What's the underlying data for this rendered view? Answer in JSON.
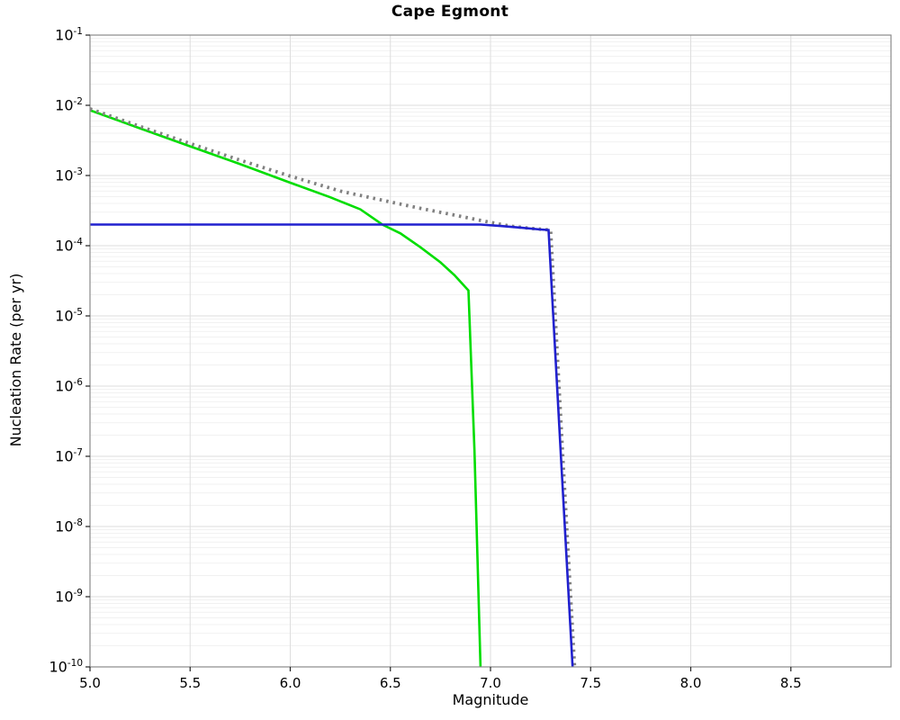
{
  "chart_data": {
    "type": "line",
    "title": "Cape Egmont",
    "xlabel": "Magnitude",
    "ylabel": "Nucleation Rate (per yr)",
    "x_ticks": [
      5.0,
      5.5,
      6.0,
      6.5,
      7.0,
      7.5,
      8.0,
      8.5
    ],
    "xlim": [
      5.0,
      9.0
    ],
    "y_scale": "log",
    "y_tick_exponents": [
      -1,
      -2,
      -3,
      -4,
      -5,
      -6,
      -7,
      -8,
      -9,
      -10
    ],
    "ylim": [
      1e-10,
      0.1
    ],
    "grid": true,
    "legend": "none",
    "colors": {
      "green_solid": "#00dd00",
      "gray_dotted": "#808080",
      "blue_solid": "#2121cf"
    },
    "series": [
      {
        "name": "green-solid-line",
        "color": "#00dd00",
        "style": "solid",
        "width": 2.6,
        "points": [
          [
            5.0,
            0.0085
          ],
          [
            5.25,
            0.0047
          ],
          [
            5.5,
            0.0026
          ],
          [
            5.75,
            0.00145
          ],
          [
            6.0,
            0.00079
          ],
          [
            6.2,
            0.00049
          ],
          [
            6.35,
            0.00033
          ],
          [
            6.46,
            0.0002
          ],
          [
            6.55,
            0.00015
          ],
          [
            6.65,
            9.5e-05
          ],
          [
            6.75,
            5.8e-05
          ],
          [
            6.82,
            3.8e-05
          ],
          [
            6.89,
            2.3e-05
          ],
          [
            6.92,
            1.2e-07
          ],
          [
            6.95,
            1e-10
          ]
        ]
      },
      {
        "name": "gray-dotted-line",
        "color": "#808080",
        "style": "dotted",
        "width": 3.8,
        "points": [
          [
            5.0,
            0.0089
          ],
          [
            5.25,
            0.005
          ],
          [
            5.5,
            0.00285
          ],
          [
            5.75,
            0.00165
          ],
          [
            6.0,
            0.00098
          ],
          [
            6.25,
            0.0006
          ],
          [
            6.5,
            0.00042
          ],
          [
            6.65,
            0.00034
          ],
          [
            6.8,
            0.00028
          ],
          [
            6.9,
            0.000245
          ],
          [
            7.0,
            0.000215
          ],
          [
            7.1,
            0.00019
          ],
          [
            7.2,
            0.000177
          ],
          [
            7.3,
            0.000167
          ],
          [
            7.36,
            1.1e-07
          ],
          [
            7.42,
            1e-10
          ]
        ]
      },
      {
        "name": "blue-solid-line",
        "color": "#2121cf",
        "style": "solid",
        "width": 2.6,
        "points": [
          [
            5.0,
            0.0002
          ],
          [
            6.95,
            0.0002
          ],
          [
            7.05,
            0.000191
          ],
          [
            7.15,
            0.000181
          ],
          [
            7.25,
            0.00017
          ],
          [
            7.29,
            0.000167
          ],
          [
            7.35,
            1.2e-07
          ],
          [
            7.41,
            1e-10
          ]
        ]
      }
    ]
  }
}
